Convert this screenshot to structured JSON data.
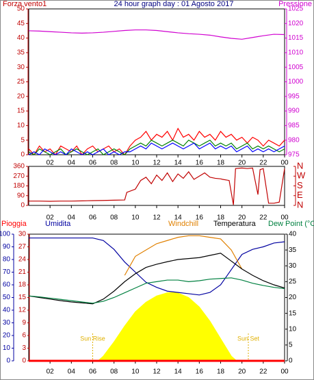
{
  "chart_data": [
    {
      "type": "line",
      "title": "24 hour graph day : 01 Agosto 2017",
      "y_label": "Forza vento1",
      "y2_label": "Pressione",
      "ycolor": "#c00000",
      "y2color": "#d000d0",
      "xlim": [
        0,
        24
      ],
      "xticks": [
        {
          "value": 2,
          "label": "02"
        },
        {
          "value": 4,
          "label": "04"
        },
        {
          "value": 6,
          "label": "06"
        },
        {
          "value": 8,
          "label": "08"
        },
        10,
        12,
        14,
        16,
        18,
        20,
        22,
        {
          "value": 24,
          "label": "00"
        }
      ],
      "ylim": [
        0,
        50
      ],
      "yticks": [
        0,
        5,
        10,
        15,
        20,
        25,
        30,
        35,
        40,
        45,
        50
      ],
      "y2lim": [
        975,
        1025
      ],
      "y2ticks": [
        975,
        980,
        985,
        990,
        995,
        1000,
        1005,
        1010,
        1015,
        1020,
        1025
      ],
      "x": [
        0,
        0.5,
        1,
        1.5,
        2,
        2.5,
        3,
        3.5,
        4,
        4.5,
        5,
        5.5,
        6,
        6.5,
        7,
        7.5,
        8,
        8.5,
        9,
        9.5,
        10,
        10.5,
        11,
        11.5,
        12,
        12.5,
        13,
        13.5,
        14,
        14.5,
        15,
        15.5,
        16,
        16.5,
        17,
        17.5,
        18,
        18.5,
        19,
        19.5,
        20,
        20.5,
        21,
        21.5,
        22,
        22.5,
        23,
        23.5,
        24
      ],
      "series": [
        {
          "color": "#ff0000",
          "values": [
            2,
            0,
            3,
            1,
            2,
            0,
            3,
            2,
            1,
            3,
            0,
            2,
            3,
            1,
            2,
            3,
            1,
            2,
            0,
            3,
            5,
            6,
            8,
            5,
            7,
            6,
            8,
            5,
            9,
            6,
            7,
            5,
            8,
            6,
            7,
            5,
            8,
            6,
            7,
            5,
            6,
            4,
            6,
            5,
            3,
            5,
            4,
            3,
            5
          ]
        },
        {
          "color": "#008000",
          "values": [
            1,
            0,
            2,
            1,
            0,
            1,
            2,
            0,
            1,
            2,
            1,
            0,
            1,
            2,
            0,
            1,
            2,
            1,
            0,
            2,
            3,
            4,
            3,
            5,
            4,
            3,
            4,
            5,
            4,
            3,
            5,
            4,
            3,
            4,
            5,
            3,
            4,
            3,
            4,
            2,
            3,
            4,
            2,
            3,
            2,
            3,
            2,
            1,
            2
          ]
        },
        {
          "color": "#0000ff",
          "values": [
            0,
            1,
            0,
            2,
            1,
            0,
            1,
            0,
            2,
            1,
            0,
            1,
            0,
            1,
            2,
            0,
            1,
            0,
            1,
            1,
            2,
            3,
            2,
            4,
            3,
            2,
            3,
            4,
            3,
            2,
            3,
            4,
            2,
            3,
            4,
            2,
            3,
            2,
            3,
            1,
            2,
            3,
            1,
            2,
            1,
            2,
            1,
            2,
            3
          ]
        },
        {
          "color": "#d000d0",
          "axis": "y2",
          "x": [
            0,
            1,
            2,
            3,
            4,
            5,
            6,
            7,
            8,
            9,
            10,
            11,
            12,
            13,
            14,
            15,
            16,
            17,
            18,
            19,
            20,
            21,
            22,
            23,
            24
          ],
          "values": [
            1017.5,
            1017.4,
            1017.2,
            1017,
            1016.8,
            1016.7,
            1016.8,
            1017,
            1017.3,
            1017.6,
            1017.8,
            1017.8,
            1017.6,
            1017.2,
            1016.8,
            1016.5,
            1016.3,
            1016,
            1015.4,
            1014.9,
            1014.6,
            1015.2,
            1015.8,
            1016.3,
            1016.2
          ]
        }
      ]
    },
    {
      "type": "line",
      "ycolor": "#c00000",
      "y2color": "#c00000",
      "xlim": [
        0,
        24
      ],
      "xticks": [
        {
          "value": 2,
          "label": "02"
        },
        {
          "value": 4,
          "label": "04"
        },
        {
          "value": 6,
          "label": "06"
        },
        {
          "value": 8,
          "label": "08"
        },
        10,
        12,
        14,
        16,
        18,
        20,
        22,
        {
          "value": 24,
          "label": "00"
        }
      ],
      "ylim": [
        0,
        360
      ],
      "yticks": [
        0,
        90,
        180,
        270,
        360
      ],
      "y2lim": [
        0,
        360
      ],
      "y2ticks": [
        {
          "value": 0,
          "label": "N"
        },
        {
          "value": 90,
          "label": "E"
        },
        {
          "value": 180,
          "label": "S"
        },
        {
          "value": 270,
          "label": "W"
        },
        {
          "value": 360,
          "label": "N"
        }
      ],
      "series": [
        {
          "color": "#c00000",
          "x": [
            0,
            1,
            2,
            3,
            4,
            5,
            6,
            7,
            8,
            9,
            9.2,
            10,
            10.5,
            11,
            11.5,
            12,
            12.5,
            13,
            13.5,
            14,
            14.5,
            15,
            15.5,
            16,
            16.5,
            17,
            17.5,
            18,
            18.2,
            18.8,
            19.2,
            19.4,
            20,
            20.5,
            21,
            21.5,
            21.7,
            22,
            22.5,
            23,
            23.5,
            24
          ],
          "values": [
            40,
            40,
            38,
            40,
            40,
            42,
            44,
            46,
            48,
            50,
            120,
            150,
            230,
            260,
            200,
            280,
            230,
            300,
            220,
            290,
            250,
            310,
            240,
            270,
            300,
            260,
            250,
            245,
            240,
            230,
            5,
            340,
            345,
            340,
            345,
            100,
            330,
            340,
            20,
            20,
            30,
            340
          ]
        }
      ]
    },
    {
      "type": "line",
      "ycolor": "#0000a0",
      "y2color": "#000000",
      "y3color": "#c00000",
      "xlim": [
        0,
        24
      ],
      "xticks": [
        {
          "value": 2,
          "label": "02"
        },
        {
          "value": 4,
          "label": "04"
        },
        {
          "value": 6,
          "label": "06"
        },
        {
          "value": 8,
          "label": "08"
        },
        10,
        12,
        14,
        16,
        18,
        20,
        22,
        {
          "value": 24,
          "label": "00"
        }
      ],
      "ylim": [
        0,
        100
      ],
      "yticks": [
        0,
        10,
        20,
        30,
        40,
        50,
        60,
        70,
        80,
        90,
        100
      ],
      "y3lim": [
        0,
        30
      ],
      "y3ticks": [
        0,
        3,
        6,
        9,
        12,
        15,
        18,
        21,
        24,
        27,
        30
      ],
      "y2lim": [
        0,
        40
      ],
      "y2ticks": [
        0,
        5,
        10,
        15,
        20,
        25,
        30,
        35,
        40
      ],
      "annotations": [
        {
          "text": "Sun Rise",
          "x": 6
        },
        {
          "text": "Sun Set",
          "x": 20.6
        }
      ],
      "solar": {
        "color": "#ffff00",
        "axis": "y2",
        "x": [
          6.5,
          7,
          8,
          9,
          10,
          11,
          12,
          13,
          13.5,
          14,
          15,
          16,
          17,
          18,
          19,
          19.5
        ],
        "values": [
          0,
          1.5,
          6,
          11,
          15.5,
          18.5,
          20.5,
          21.5,
          21.6,
          21.4,
          20,
          17,
          12.5,
          7,
          1.5,
          0
        ]
      },
      "x": [
        0,
        1,
        2,
        3,
        4,
        5,
        6,
        7,
        8,
        9,
        10,
        11,
        12,
        13,
        14,
        15,
        16,
        17,
        18,
        19,
        20,
        21,
        22,
        23,
        24
      ],
      "series": [
        {
          "name": "Pioggia",
          "color": "#ff0000",
          "axis": "y3",
          "x": [
            0,
            24
          ],
          "values": [
            0,
            0
          ]
        },
        {
          "name": "Umidita",
          "color": "#0000a0",
          "values": [
            97,
            97,
            97,
            97,
            97,
            97,
            97,
            95,
            88,
            78,
            70,
            62,
            58,
            55,
            54,
            53,
            52,
            54,
            60,
            72,
            84,
            88,
            90,
            93,
            94
          ]
        },
        {
          "name": "Windchill",
          "color": "#e08000",
          "axis": "y2",
          "values": [
            null,
            null,
            null,
            null,
            null,
            null,
            null,
            null,
            null,
            27,
            33,
            35,
            37,
            38,
            39,
            39.5,
            39.5,
            39,
            38.5,
            35,
            29,
            null,
            null,
            null,
            null
          ]
        },
        {
          "name": "Temperatura",
          "color": "#000000",
          "axis": "y2",
          "values": [
            20.5,
            20,
            19.5,
            19,
            18.6,
            18.3,
            18,
            19.5,
            22,
            25,
            27.5,
            29.5,
            30.5,
            31.3,
            32,
            32.3,
            32.6,
            33.3,
            34,
            31.5,
            29,
            27,
            25.3,
            24,
            23
          ]
        },
        {
          "name": "Dew Point (°C",
          "color": "#008040",
          "axis": "y2",
          "values": [
            20.5,
            20.2,
            19.8,
            19.4,
            19,
            18.6,
            18.2,
            18.8,
            20,
            21.5,
            23,
            24.5,
            25,
            25.5,
            25.5,
            25,
            25.3,
            25.8,
            26,
            26.2,
            25.5,
            24.5,
            23.8,
            23.2,
            22.8
          ]
        }
      ]
    }
  ]
}
